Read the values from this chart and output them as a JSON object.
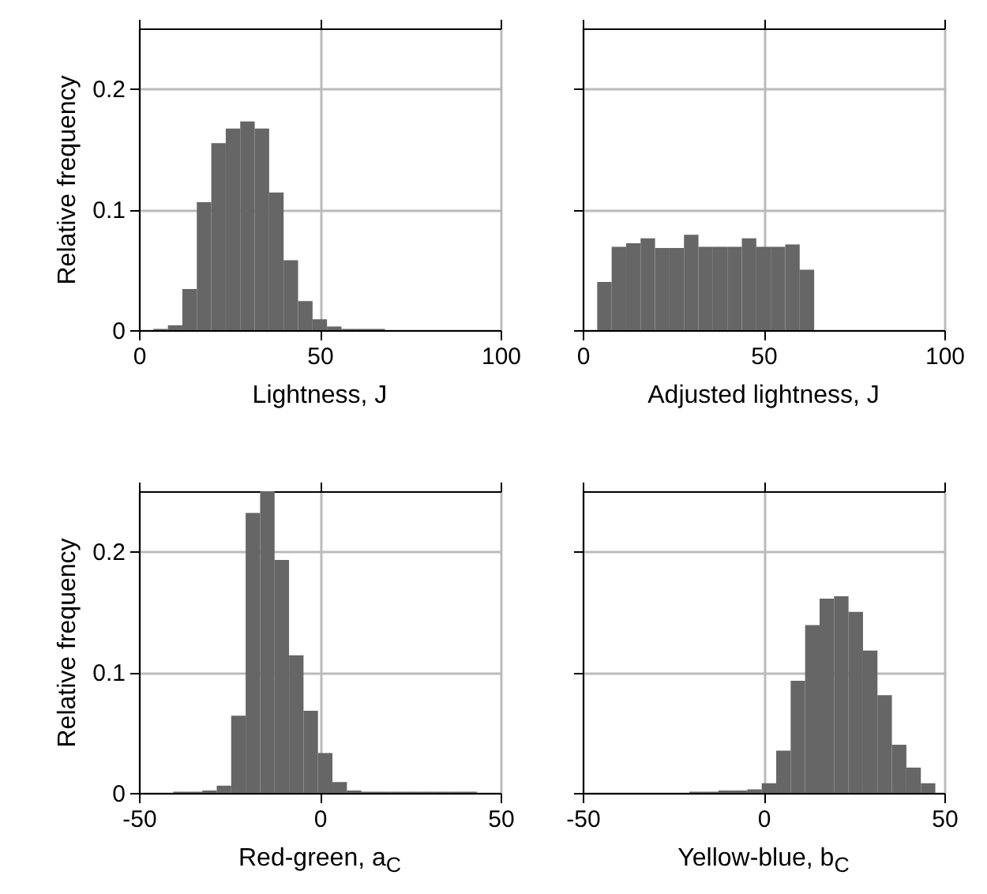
{
  "chart_data": [
    {
      "type": "histogram",
      "xlabel": "Lightness, J",
      "ylabel": "Relative frequency",
      "color": "#666666",
      "bins": [
        4,
        8,
        12,
        16,
        20,
        24,
        28,
        32,
        36,
        40,
        44,
        48,
        52,
        56,
        60,
        64,
        68
      ],
      "values": [
        0.001,
        0.004,
        0.034,
        0.106,
        0.155,
        0.167,
        0.173,
        0.167,
        0.114,
        0.058,
        0.024,
        0.009,
        0.003,
        0.001,
        0.001,
        0.001
      ],
      "xlim": [
        0,
        100
      ],
      "xticks": [
        0,
        50,
        100
      ],
      "ylim": [
        0,
        0.25
      ],
      "yticks": [
        0,
        0.1,
        0.2
      ],
      "grid": true
    },
    {
      "type": "histogram",
      "xlabel": "Adjusted lightness, J",
      "color": "#666666",
      "bins": [
        4,
        8,
        12,
        16,
        20,
        24,
        28,
        32,
        36,
        40,
        44,
        48,
        52,
        56,
        60,
        64
      ],
      "values": [
        0.04,
        0.069,
        0.072,
        0.076,
        0.068,
        0.068,
        0.079,
        0.069,
        0.069,
        0.069,
        0.076,
        0.069,
        0.069,
        0.071,
        0.05
      ],
      "xlim": [
        0,
        100
      ],
      "xticks": [
        0,
        50,
        100
      ],
      "ylim": [
        0,
        0.25
      ],
      "yticks": [
        0,
        0.1,
        0.2
      ],
      "grid": true,
      "tick_labels": "x"
    },
    {
      "type": "histogram",
      "xlabel": "Red-green, a$_{C}$",
      "ylabel": "Relative frequency",
      "color": "#666666",
      "bins": [
        -40.5,
        -36.5,
        -32.5,
        -28.5,
        -24.5,
        -20.5,
        -16.5,
        -12.5,
        -8.5,
        -4.5,
        -0.5,
        3.5,
        7.5,
        11.5,
        15.5,
        19.5,
        23.5,
        27.5,
        31.5,
        35.5,
        39.5,
        43.5
      ],
      "values": [
        0.001,
        0.001,
        0.002,
        0.006,
        0.064,
        0.232,
        0.25,
        0.193,
        0.114,
        0.068,
        0.033,
        0.009,
        0.002,
        0.001,
        0.001,
        0.001,
        0.001,
        0.001,
        0.001,
        0.001,
        0.001
      ],
      "xlim": [
        -50,
        50
      ],
      "xticks": [
        -50,
        0,
        50
      ],
      "ylim": [
        0,
        0.25
      ],
      "yticks": [
        0,
        0.1,
        0.2
      ],
      "grid": true
    },
    {
      "type": "histogram",
      "xlabel": "Yellow-blue, b$_{C}$",
      "color": "#666666",
      "bins": [
        -20.5,
        -16.5,
        -12.5,
        -8.5,
        -4.5,
        -0.5,
        3.5,
        7.5,
        11.5,
        15.5,
        19.5,
        23.5,
        27.5,
        31.5,
        35.5,
        39.5,
        43.5,
        47.5
      ],
      "values": [
        0.001,
        0.001,
        0.002,
        0.002,
        0.003,
        0.008,
        0.035,
        0.093,
        0.139,
        0.161,
        0.163,
        0.15,
        0.118,
        0.081,
        0.04,
        0.021,
        0.008
      ],
      "xlim": [
        -50,
        50
      ],
      "xticks": [
        -50,
        0,
        50
      ],
      "ylim": [
        0,
        0.25
      ],
      "yticks": [
        0,
        0.1,
        0.2
      ],
      "grid": true,
      "tick_labels": "x"
    }
  ]
}
